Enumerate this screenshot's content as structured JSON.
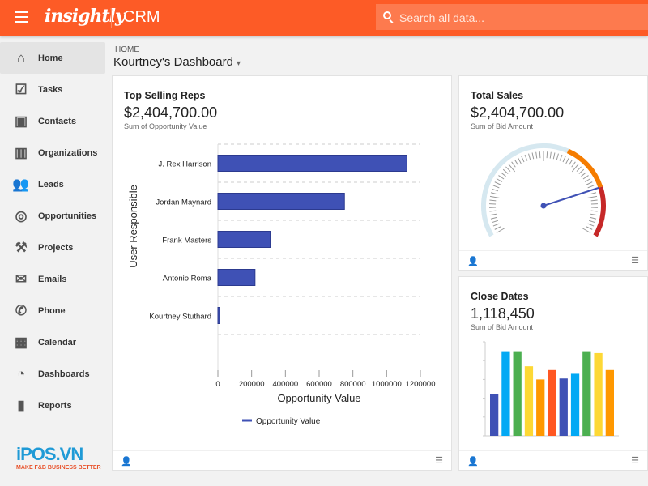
{
  "header": {
    "logo": "insightly",
    "app": "CRM",
    "search_placeholder": "Search all data...",
    "brand_color": "#fd5b26"
  },
  "sidebar": {
    "items": [
      {
        "label": "Home",
        "icon": "home-icon",
        "glyph": "⌂",
        "active": true
      },
      {
        "label": "Tasks",
        "icon": "checkbox-icon",
        "glyph": "☑"
      },
      {
        "label": "Contacts",
        "icon": "contact-card-icon",
        "glyph": "▣"
      },
      {
        "label": "Organizations",
        "icon": "building-icon",
        "glyph": "▥"
      },
      {
        "label": "Leads",
        "icon": "people-icon",
        "glyph": "👥"
      },
      {
        "label": "Opportunities",
        "icon": "target-icon",
        "glyph": "◎"
      },
      {
        "label": "Projects",
        "icon": "hammer-icon",
        "glyph": "⚒"
      },
      {
        "label": "Emails",
        "icon": "envelope-icon",
        "glyph": "✉"
      },
      {
        "label": "Phone",
        "icon": "phone-icon",
        "glyph": "✆"
      },
      {
        "label": "Calendar",
        "icon": "calendar-icon",
        "glyph": "▦"
      },
      {
        "label": "Dashboards",
        "icon": "gauge-icon",
        "glyph": "◔"
      },
      {
        "label": "Reports",
        "icon": "bar-chart-icon",
        "glyph": "▮"
      }
    ]
  },
  "breadcrumb": "HOME",
  "page_title": "Kourtney's Dashboard",
  "watermark": {
    "brand": "iPOS.VN",
    "tagline": "MAKE F&B BUSINESS BETTER"
  },
  "chart_data": [
    {
      "type": "bar",
      "orientation": "horizontal",
      "title": "Top Selling Reps",
      "total": "$2,404,700.00",
      "subtitle": "Sum of Opportunity Value",
      "categories": [
        "J. Rex Harrison",
        "Jordan Maynard",
        "Frank Masters",
        "Antonio Roma",
        "Kourtney Stuthard"
      ],
      "values": [
        1120000,
        750000,
        310000,
        220000,
        10000
      ],
      "xlabel": "Opportunity Value",
      "ylabel": "User Responsible",
      "xlim": [
        0,
        1200000
      ],
      "xticks": [
        "0",
        "200000",
        "400000",
        "600000",
        "800000",
        "1000000",
        "1200000"
      ],
      "legend": "Opportunity Value",
      "legend_position": "bottom",
      "color": "#3f51b5",
      "grid": true
    },
    {
      "type": "gauge",
      "title": "Total Sales",
      "total": "$2,404,700.00",
      "subtitle": "Sum of Bid Amount",
      "value_fraction": 0.8,
      "bands": [
        {
          "to": 0.6,
          "color": "#d6e8f0"
        },
        {
          "to": 0.8,
          "color": "#f57c00"
        },
        {
          "to": 1,
          "color": "#c62828"
        }
      ],
      "needle_color": "#3f51b5"
    },
    {
      "type": "bar",
      "title": "Close Dates",
      "total": "1,118,450",
      "subtitle": "Sum of Bid Amount",
      "ylim": [
        0,
        5
      ],
      "values": [
        2.2,
        4.5,
        4.5,
        3.7,
        3,
        3.5,
        3.05,
        3.3,
        4.5,
        4.4,
        3.5
      ],
      "colors": [
        "#3f51b5",
        "#03a9f4",
        "#4caf50",
        "#fdd835",
        "#ff9800",
        "#ff5722",
        "#3f51b5",
        "#03a9f4",
        "#4caf50",
        "#fdd835",
        "#ff9800"
      ]
    }
  ]
}
